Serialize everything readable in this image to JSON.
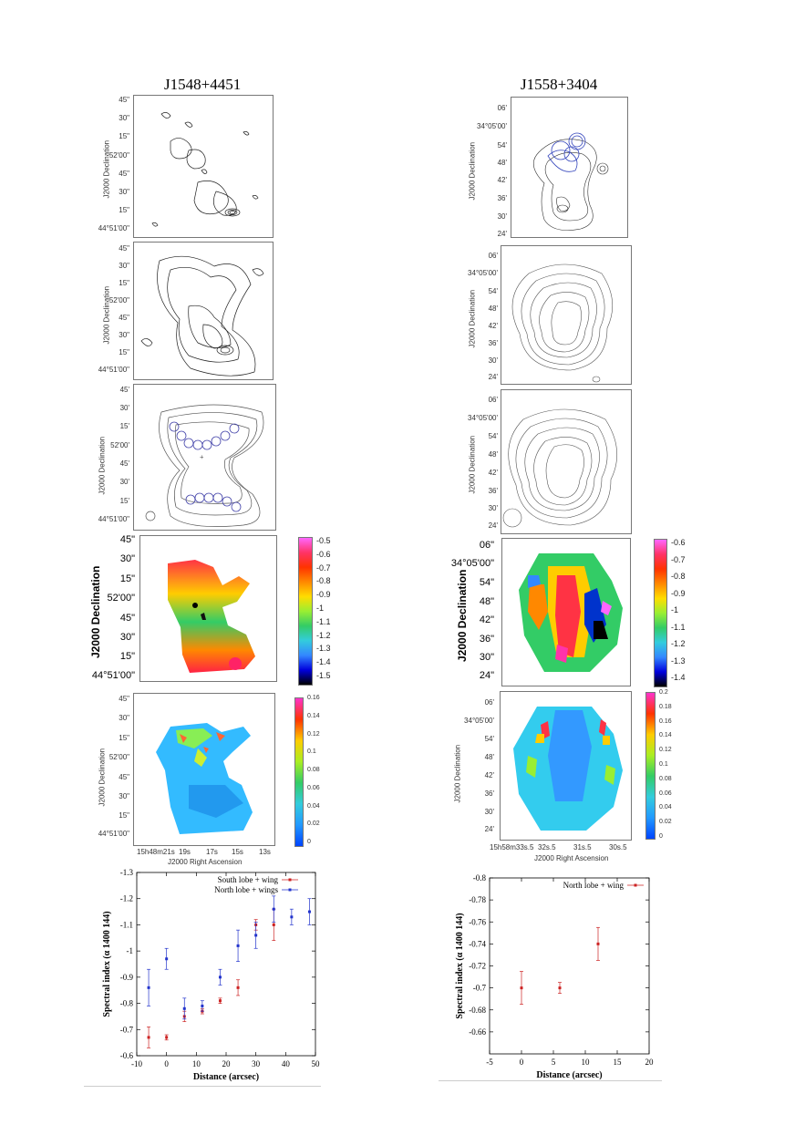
{
  "left": {
    "title": "J1548+4451",
    "dec_label": "J2000 Declination",
    "dec_ticks_small": [
      "45\"",
      "30\"",
      "15\"",
      "52'00\"",
      "45\"",
      "30\"",
      "15\"",
      "44°51'00\""
    ],
    "dec_ticks_panel3": [
      "45'",
      "30'",
      "15'",
      "52'00'",
      "45'",
      "30'",
      "15'",
      "44°51'00\""
    ],
    "ra_ticks": [
      "15h48m21s",
      "19s",
      "17s",
      "15s",
      "13s"
    ],
    "ra_label": "J2000 Right Ascension",
    "colorbar_index": [
      "-0.5",
      "-0.6",
      "-0.7",
      "-0.8",
      "-0.9",
      "-1",
      "-1.1",
      "-1.2",
      "-1.3",
      "-1.4",
      "-1.5"
    ],
    "colorbar_error": [
      "0.16",
      "0.14",
      "0.12",
      "0.1",
      "0.08",
      "0.06",
      "0.04",
      "0.02",
      "0"
    ]
  },
  "right": {
    "title": "J1558+3404",
    "dec_label": "J2000 Declination",
    "dec_ticks": [
      "06'",
      "34°05'00'",
      "54'",
      "48'",
      "42'",
      "36'",
      "30'",
      "24'"
    ],
    "dec_ticks_big": [
      "06\"",
      "34°05'00\"",
      "54\"",
      "48\"",
      "42\"",
      "36\"",
      "30\"",
      "24\""
    ],
    "ra_ticks": [
      "15h58m33s.5",
      "32s.5",
      "31s.5",
      "30s.5"
    ],
    "ra_label": "J2000 Right Ascension",
    "colorbar_index": [
      "-0.6",
      "-0.7",
      "-0.8",
      "-0.9",
      "-1",
      "-1.1",
      "-1.2",
      "-1.3",
      "-1.4"
    ],
    "colorbar_error": [
      "0.2",
      "0.18",
      "0.16",
      "0.14",
      "0.12",
      "0.1",
      "0.08",
      "0.06",
      "0.04",
      "0.02",
      "0"
    ]
  },
  "colors": {
    "south_series": "#cc2222",
    "north_series": "#2233cc"
  },
  "chart_data": [
    {
      "type": "scatter",
      "xlabel": "Distance (arcsec)",
      "ylabel": "Spectral index (α 1400 144)",
      "xlim": [
        -10,
        50
      ],
      "ylim": [
        -0.6,
        -1.3
      ],
      "x_ticks": [
        "-10",
        "0",
        "10",
        "20",
        "30",
        "40",
        "50"
      ],
      "y_ticks": [
        "-1.3",
        "-1.2",
        "-1.1",
        "-1",
        "-0.9",
        "-0.8",
        "-0.7",
        "-0.6"
      ],
      "series": [
        {
          "name": "South lobe + wing",
          "color": "#cc2222",
          "x": [
            -6,
            0,
            6,
            12,
            18,
            24,
            30,
            36
          ],
          "y": [
            -0.67,
            -0.67,
            -0.75,
            -0.77,
            -0.81,
            -0.86,
            -1.1,
            -1.1
          ],
          "err": [
            0.04,
            0.01,
            0.02,
            0.01,
            0.01,
            0.03,
            0.02,
            0.06
          ]
        },
        {
          "name": "North lobe + wings",
          "color": "#2233cc",
          "x": [
            -6,
            0,
            6,
            12,
            18,
            24,
            30,
            36,
            42,
            48
          ],
          "y": [
            -0.86,
            -0.97,
            -0.78,
            -0.79,
            -0.9,
            -1.02,
            -1.06,
            -1.16,
            -1.13,
            -1.15
          ],
          "err": [
            0.07,
            0.04,
            0.04,
            0.02,
            0.03,
            0.06,
            0.05,
            0.05,
            0.03,
            0.05
          ]
        }
      ]
    },
    {
      "type": "scatter",
      "xlabel": "Distance (arcsec)",
      "ylabel": "Spectral index (α 1400 144)",
      "xlim": [
        -5,
        20
      ],
      "ylim": [
        -0.64,
        -0.8
      ],
      "x_ticks": [
        "-5",
        "0",
        "5",
        "10",
        "15",
        "20"
      ],
      "y_ticks": [
        "-0.8",
        "-0.78",
        "-0.76",
        "-0.74",
        "-0.72",
        "-0.7",
        "-0.68",
        "-0.66"
      ],
      "series": [
        {
          "name": "North lobe + wing",
          "color": "#cc2222",
          "x": [
            0,
            6,
            12
          ],
          "y": [
            -0.7,
            -0.7,
            -0.74
          ],
          "err": [
            0.015,
            0.005,
            0.015
          ]
        }
      ]
    }
  ]
}
